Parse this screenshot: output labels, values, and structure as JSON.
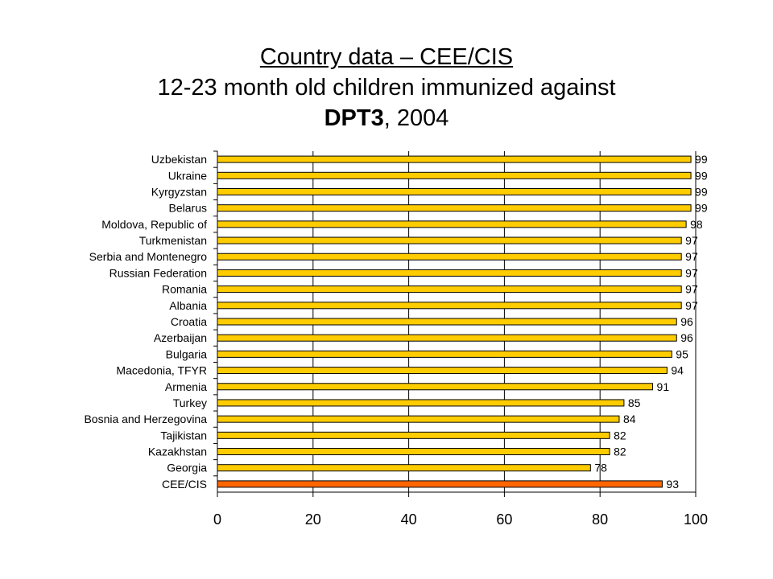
{
  "title": {
    "line1": "Country data – CEE/CIS",
    "line2": "12-23 month old children immunized against",
    "line3_bold": "DPT3",
    "line3_rest": ", 2004"
  },
  "chart_data": {
    "type": "bar",
    "orientation": "horizontal",
    "categories": [
      "Uzbekistan",
      "Ukraine",
      "Kyrgyzstan",
      "Belarus",
      "Moldova, Republic of",
      "Turkmenistan",
      "Serbia and Montenegro",
      "Russian Federation",
      "Romania",
      "Albania",
      "Croatia",
      "Azerbaijan",
      "Bulgaria",
      "Macedonia, TFYR",
      "Armenia",
      "Turkey",
      "Bosnia and Herzegovina",
      "Tajikistan",
      "Kazakhstan",
      "Georgia",
      "CEE/CIS"
    ],
    "values": [
      99,
      99,
      99,
      99,
      98,
      97,
      97,
      97,
      97,
      97,
      96,
      96,
      95,
      94,
      91,
      85,
      84,
      82,
      82,
      78,
      93
    ],
    "xlim": [
      0,
      100
    ],
    "xticks": [
      0,
      20,
      40,
      60,
      80,
      100
    ],
    "grid": "vertical",
    "colors": {
      "bar": "#FFCC00",
      "highlight": "#FF6600",
      "edge": "#000000"
    },
    "highlight_category": "CEE/CIS"
  }
}
